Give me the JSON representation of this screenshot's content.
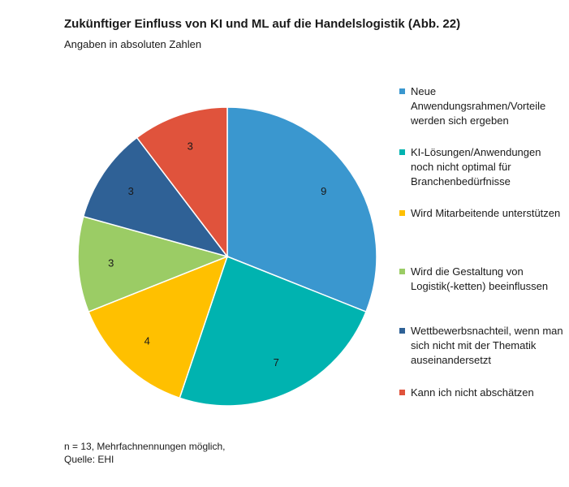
{
  "chart_data": {
    "type": "pie",
    "title": "Zukünftiger Einfluss von KI und ML auf die Handelslogistik (Abb. 22)",
    "subtitle": "Angaben in absoluten Zahlen",
    "categories": [
      "Neue Anwendungsrahmen/Vorteile werden sich ergeben",
      "KI-Lösungen/Anwendungen noch nicht optimal für Branchenbedürfnisse",
      "Wird Mitarbeitende unterstützen",
      "Wird die Gestaltung von Logistik(-ketten) beeinflussen",
      "Wettbewerbsnachteil, wenn man sich nicht mit der Thematik auseinandersetzt",
      "Kann ich nicht abschätzen"
    ],
    "values": [
      9,
      7,
      4,
      3,
      3,
      3
    ],
    "colors": [
      "#3a97cf",
      "#00b3b0",
      "#ffc000",
      "#9bcc65",
      "#2f6196",
      "#e0533c"
    ],
    "data_labels": [
      "9",
      "7",
      "4",
      "3",
      "3",
      "3"
    ],
    "legend_position": "right"
  },
  "footnote": {
    "line1": "n = 13, Mehrfachnennungen möglich,",
    "line2": "Quelle: EHI"
  }
}
